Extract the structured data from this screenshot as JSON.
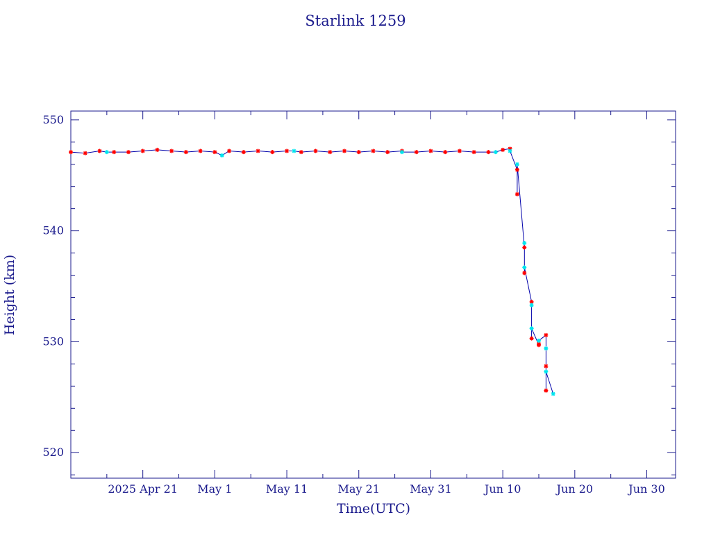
{
  "chart_data": {
    "type": "line",
    "title": "Starlink 1259",
    "xlabel": "Time(UTC)",
    "ylabel": "Height (km)",
    "x_ticks": [
      "2025 Apr 21",
      "May  1",
      "May 11",
      "May 21",
      "May 31",
      "Jun 10",
      "Jun 20",
      "Jun 30"
    ],
    "y_ticks": [
      "520",
      "530",
      "540",
      "550"
    ],
    "xlim": [
      "2025-04-11",
      "2025-07-04"
    ],
    "ylim": [
      517.7,
      550.8
    ],
    "grid": false,
    "colors": {
      "frame": "#1a1a8c",
      "line": "#0000aa",
      "series_a": "#ff0000",
      "series_b": "#00e5ee"
    },
    "series": [
      {
        "marker": "red-star",
        "points": [
          [
            "2025-04-11",
            547.1
          ],
          [
            "2025-04-13",
            547.0
          ],
          [
            "2025-04-15",
            547.2
          ],
          [
            "2025-04-17",
            547.1
          ],
          [
            "2025-04-19",
            547.1
          ],
          [
            "2025-04-21",
            547.2
          ],
          [
            "2025-04-23",
            547.3
          ],
          [
            "2025-04-25",
            547.2
          ],
          [
            "2025-04-27",
            547.1
          ],
          [
            "2025-04-29",
            547.2
          ],
          [
            "2025-05-01",
            547.1
          ],
          [
            "2025-05-03",
            547.2
          ],
          [
            "2025-05-05",
            547.1
          ],
          [
            "2025-05-07",
            547.2
          ],
          [
            "2025-05-09",
            547.1
          ],
          [
            "2025-05-11",
            547.2
          ],
          [
            "2025-05-13",
            547.1
          ],
          [
            "2025-05-15",
            547.2
          ],
          [
            "2025-05-17",
            547.1
          ],
          [
            "2025-05-19",
            547.2
          ],
          [
            "2025-05-21",
            547.1
          ],
          [
            "2025-05-23",
            547.2
          ],
          [
            "2025-05-25",
            547.1
          ],
          [
            "2025-05-27",
            547.2
          ],
          [
            "2025-05-29",
            547.1
          ],
          [
            "2025-05-31",
            547.2
          ],
          [
            "2025-06-02",
            547.1
          ],
          [
            "2025-06-04",
            547.2
          ],
          [
            "2025-06-06",
            547.1
          ],
          [
            "2025-06-08",
            547.1
          ],
          [
            "2025-06-10",
            547.3
          ],
          [
            "2025-06-11",
            547.4
          ],
          [
            "2025-06-12",
            545.5
          ],
          [
            "2025-06-12",
            543.3
          ],
          [
            "2025-06-13",
            538.5
          ],
          [
            "2025-06-13",
            536.2
          ],
          [
            "2025-06-14",
            533.6
          ],
          [
            "2025-06-14",
            530.3
          ],
          [
            "2025-06-15",
            529.7
          ],
          [
            "2025-06-15",
            529.8
          ],
          [
            "2025-06-16",
            530.6
          ],
          [
            "2025-06-16",
            527.8
          ],
          [
            "2025-06-16",
            525.6
          ]
        ]
      },
      {
        "marker": "cyan-star",
        "points": [
          [
            "2025-04-16",
            547.1
          ],
          [
            "2025-05-02",
            546.8
          ],
          [
            "2025-05-12",
            547.2
          ],
          [
            "2025-05-27",
            547.1
          ],
          [
            "2025-06-09",
            547.1
          ],
          [
            "2025-06-11",
            547.2
          ],
          [
            "2025-06-12",
            546.0
          ],
          [
            "2025-06-13",
            538.9
          ],
          [
            "2025-06-13",
            536.7
          ],
          [
            "2025-06-14",
            533.3
          ],
          [
            "2025-06-14",
            531.2
          ],
          [
            "2025-06-15",
            530.1
          ],
          [
            "2025-06-16",
            529.4
          ],
          [
            "2025-06-16",
            527.3
          ],
          [
            "2025-06-17",
            525.3
          ]
        ]
      }
    ]
  }
}
